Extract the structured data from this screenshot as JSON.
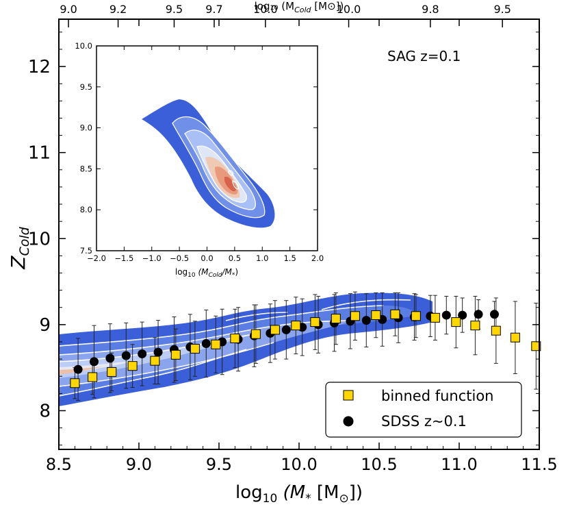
{
  "chart_data": {
    "type": "scatter",
    "annotation": "SAG z=0.1",
    "xlabel_main": "log",
    "xlabel_sub": "10",
    "xlabel_expr": "(M",
    "xlabel_expr_sub": "*",
    "xlabel_expr_end": " [M",
    "xlabel_sun": "⊙",
    "xlabel_close": "])",
    "ylabel_main": "Z",
    "ylabel_sub": "Cold",
    "top_label": "log₁₀ (M",
    "top_label_sub": "Cold",
    "top_label_end": " [M⊙])",
    "xlim": [
      8.5,
      11.5
    ],
    "ylim": [
      7.55,
      12.55
    ],
    "x_ticks": [
      "8.5",
      "9.0",
      "9.5",
      "10.0",
      "10.5",
      "11.0",
      "11.5"
    ],
    "y_ticks": [
      "8",
      "9",
      "10",
      "11",
      "12"
    ],
    "top_ticks": [
      {
        "x": 8.56,
        "label": "9.0"
      },
      {
        "x": 8.87,
        "label": "9.2"
      },
      {
        "x": 9.22,
        "label": "9.5"
      },
      {
        "x": 9.47,
        "label": "9.7"
      },
      {
        "x": 9.79,
        "label": "10.0"
      },
      {
        "x": 10.31,
        "label": "10.0"
      },
      {
        "x": 10.82,
        "label": "9.8"
      },
      {
        "x": 11.27,
        "label": "9.5"
      }
    ],
    "legend": [
      {
        "label": "binned function"
      },
      {
        "label": "SDSS z~0.1"
      }
    ],
    "series": [
      {
        "name": "binned function",
        "x": [
          8.6,
          8.71,
          8.83,
          8.96,
          9.1,
          9.23,
          9.35,
          9.48,
          9.6,
          9.73,
          9.85,
          9.98,
          10.1,
          10.23,
          10.35,
          10.48,
          10.6,
          10.73,
          10.85,
          10.98,
          11.1,
          11.23,
          11.35,
          11.48
        ],
        "y": [
          8.32,
          8.39,
          8.45,
          8.52,
          8.58,
          8.65,
          8.72,
          8.77,
          8.84,
          8.89,
          8.94,
          8.99,
          9.03,
          9.07,
          9.1,
          9.11,
          9.12,
          9.1,
          9.08,
          9.03,
          8.99,
          8.93,
          8.85,
          8.75
        ],
        "yerr": [
          0.18,
          0.2,
          0.22,
          0.25,
          0.27,
          0.3,
          0.32,
          0.33,
          0.34,
          0.34,
          0.34,
          0.33,
          0.32,
          0.3,
          0.28,
          0.26,
          0.25,
          0.25,
          0.26,
          0.3,
          0.34,
          0.38,
          0.42,
          0.5
        ]
      },
      {
        "name": "SDSS z~0.1",
        "x": [
          8.62,
          8.72,
          8.82,
          8.92,
          9.02,
          9.12,
          9.22,
          9.32,
          9.42,
          9.52,
          9.62,
          9.72,
          9.82,
          9.92,
          10.02,
          10.12,
          10.22,
          10.32,
          10.42,
          10.52,
          10.62,
          10.72,
          10.82,
          10.92,
          11.02,
          11.12,
          11.22
        ],
        "y": [
          8.48,
          8.57,
          8.61,
          8.64,
          8.66,
          8.68,
          8.71,
          8.74,
          8.78,
          8.8,
          8.83,
          8.87,
          8.9,
          8.94,
          8.97,
          9.0,
          9.02,
          9.04,
          9.05,
          9.06,
          9.08,
          9.09,
          9.1,
          9.11,
          9.11,
          9.12,
          9.12
        ],
        "yerr": [
          0.36,
          0.42,
          0.4,
          0.38,
          0.37,
          0.37,
          0.38,
          0.38,
          0.39,
          0.38,
          0.37,
          0.36,
          0.34,
          0.34,
          0.33,
          0.33,
          0.33,
          0.32,
          0.31,
          0.31,
          0.29,
          0.27,
          0.24,
          0.22,
          0.2,
          0.17,
          0.15
        ]
      }
    ],
    "inset": {
      "type": "contour",
      "xlabel": "log",
      "xlabel_sub": "10",
      "xlabel_rest": "(M",
      "xlabel_cold": "Cold",
      "xlabel_end": "/M",
      "xlabel_star": "*",
      "xlabel_close": ")",
      "xlim": [
        -2.0,
        2.0
      ],
      "ylim": [
        7.5,
        10.0
      ],
      "x_ticks": [
        "−2.0",
        "−1.5",
        "−1.0",
        "−0.5",
        "0.0",
        "0.5",
        "1.0",
        "1.5",
        "2.0"
      ],
      "y_ticks": [
        "7.5",
        "8.0",
        "8.5",
        "9.0",
        "9.5",
        "10.0"
      ]
    },
    "colors": {
      "binned_face": "#ffd700",
      "contour_outer": "#3b5fd8",
      "contour_mid": "#6f8fe8",
      "contour_light": "#a8c0f5",
      "contour_pale": "#dfe6f5",
      "contour_warm": "#f0c9b2",
      "contour_orange": "#ea9a7c",
      "contour_red": "#d8634d"
    }
  }
}
